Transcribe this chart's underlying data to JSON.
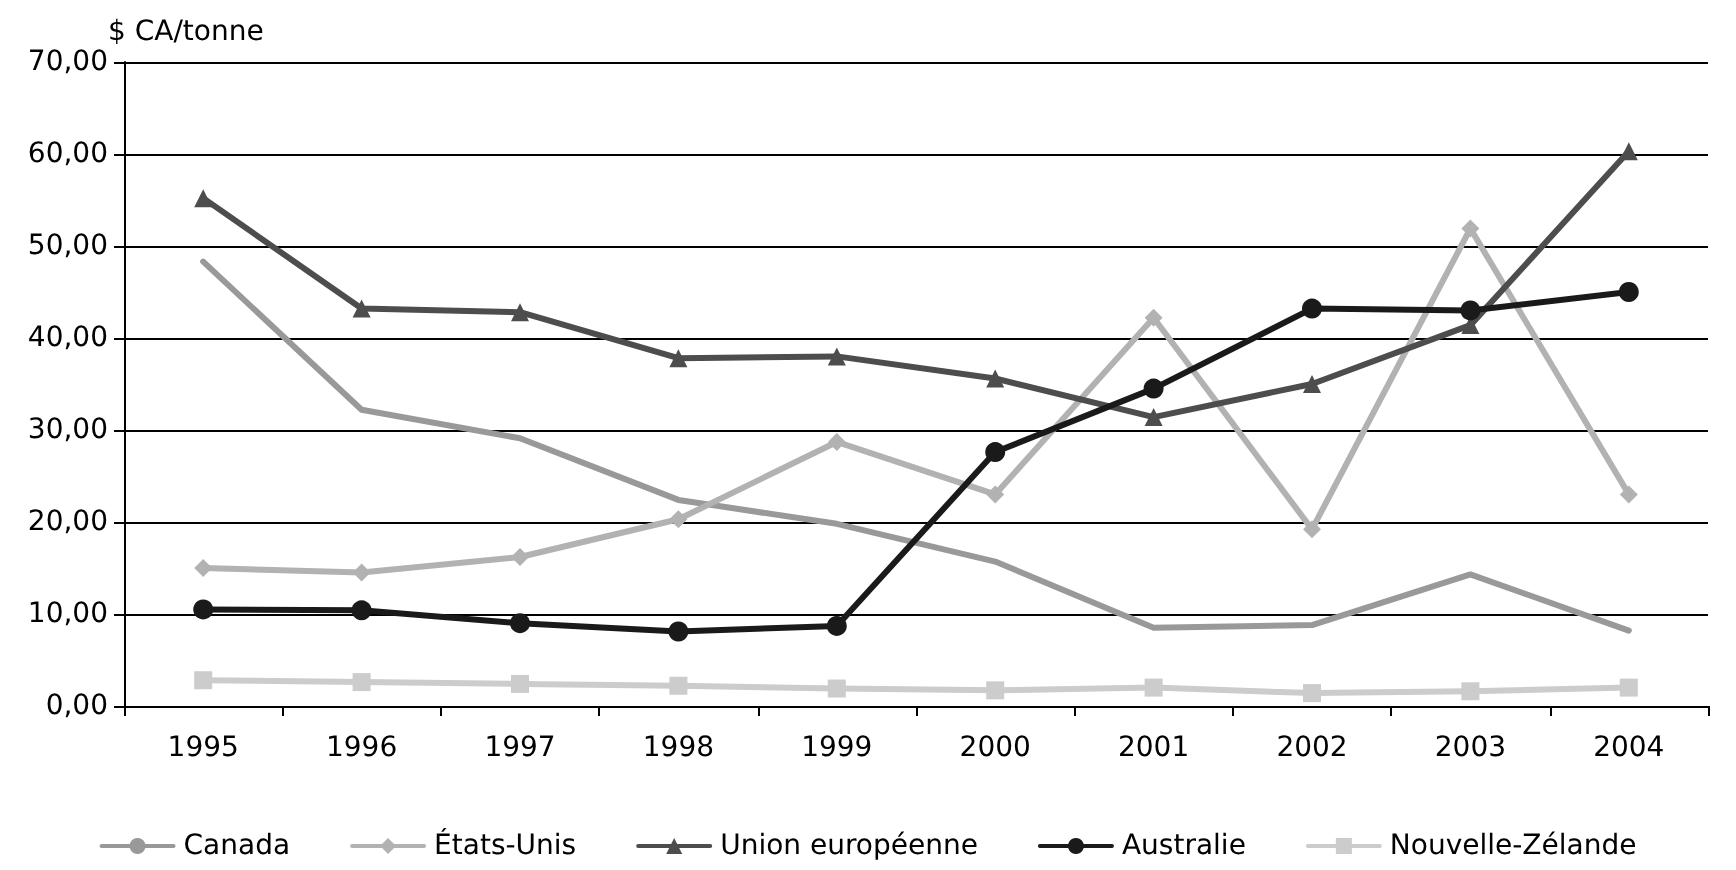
{
  "chart_data": {
    "type": "line",
    "ylabel": "$ CA/tonne",
    "categories": [
      "1995",
      "1996",
      "1997",
      "1998",
      "1999",
      "2000",
      "2001",
      "2002",
      "2003",
      "2004"
    ],
    "series": [
      {
        "name": "Canada",
        "color": "#999999",
        "marker": "none",
        "values": [
          48.3,
          32.2,
          29.1,
          22.4,
          19.8,
          15.7,
          8.5,
          8.8,
          14.3,
          8.2
        ]
      },
      {
        "name": "États-Unis",
        "color": "#b2b2b2",
        "marker": "diamond",
        "values": [
          15.0,
          14.5,
          16.2,
          20.3,
          28.7,
          23.0,
          42.2,
          19.2,
          51.9,
          23.0
        ]
      },
      {
        "name": "Union européenne",
        "color": "#4d4d4d",
        "marker": "triangle",
        "values": [
          55.2,
          43.2,
          42.8,
          37.8,
          38.0,
          35.6,
          31.4,
          35.0,
          41.4,
          60.3
        ]
      },
      {
        "name": "Australie",
        "color": "#1a1a1a",
        "marker": "circle",
        "values": [
          10.5,
          10.4,
          9.0,
          8.1,
          8.7,
          27.6,
          34.5,
          43.2,
          43.0,
          45.0
        ]
      },
      {
        "name": "Nouvelle-Zélande",
        "color": "#cccccc",
        "marker": "square",
        "values": [
          2.8,
          2.6,
          2.4,
          2.2,
          1.9,
          1.7,
          2.0,
          1.4,
          1.6,
          2.0
        ]
      }
    ],
    "ylim": [
      0,
      70
    ],
    "yticks": [
      {
        "value": 0,
        "label": "0,00"
      },
      {
        "value": 10,
        "label": "10,00"
      },
      {
        "value": 20,
        "label": "20,00"
      },
      {
        "value": 30,
        "label": "30,00"
      },
      {
        "value": 40,
        "label": "40,00"
      },
      {
        "value": 50,
        "label": "50,00"
      },
      {
        "value": 60,
        "label": "60,00"
      },
      {
        "value": 70,
        "label": "70,00"
      }
    ],
    "grid": "y",
    "legend": "bottom",
    "line_style": "solid"
  }
}
